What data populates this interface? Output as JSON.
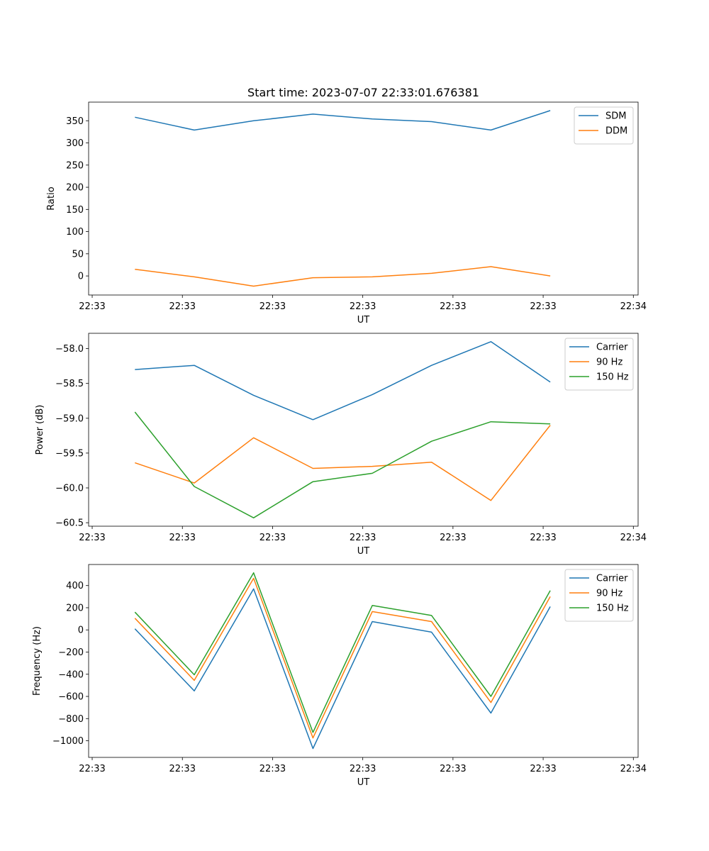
{
  "chart_data": [
    {
      "type": "line",
      "title": "Start time: 2023-07-07 22:33:01.676381",
      "xlabel": "UT",
      "ylabel": "Ratio",
      "x": [
        0,
        1,
        2,
        3,
        4,
        5,
        6,
        7
      ],
      "xlim": [
        -0.78,
        8.48
      ],
      "x_ticks": [
        -0.72,
        0.8,
        2.32,
        3.84,
        5.36,
        6.88,
        8.4
      ],
      "x_tick_labels": [
        "22:33",
        "22:33",
        "22:33",
        "22:33",
        "22:33",
        "22:33",
        "22:34"
      ],
      "ylim": [
        -43,
        392
      ],
      "y_ticks": [
        0,
        50,
        100,
        150,
        200,
        250,
        300,
        350
      ],
      "y_tick_labels": [
        "0",
        "50",
        "100",
        "150",
        "200",
        "250",
        "300",
        "350"
      ],
      "legend": "top-right",
      "series": [
        {
          "name": "SDM",
          "color": "#1f77b4",
          "values": [
            358,
            329,
            350,
            365,
            354,
            348,
            329,
            373
          ]
        },
        {
          "name": "DDM",
          "color": "#ff7f0e",
          "values": [
            15,
            -2,
            -23,
            -4,
            -2,
            6,
            21,
            0
          ]
        }
      ]
    },
    {
      "type": "line",
      "title": "",
      "xlabel": "UT",
      "ylabel": "Power (dB)",
      "x": [
        0,
        1,
        2,
        3,
        4,
        5,
        6,
        7
      ],
      "xlim": [
        -0.78,
        8.48
      ],
      "x_ticks": [
        -0.72,
        0.8,
        2.32,
        3.84,
        5.36,
        6.88,
        8.4
      ],
      "x_tick_labels": [
        "22:33",
        "22:33",
        "22:33",
        "22:33",
        "22:33",
        "22:33",
        "22:34"
      ],
      "ylim": [
        -60.55,
        -57.78
      ],
      "y_ticks": [
        -60.5,
        -60.0,
        -59.5,
        -59.0,
        -58.5,
        -58.0
      ],
      "y_tick_labels": [
        "−60.5",
        "−60.0",
        "−59.5",
        "−59.0",
        "−58.5",
        "−58.0"
      ],
      "legend": "top-right",
      "series": [
        {
          "name": "Carrier",
          "color": "#1f77b4",
          "values": [
            -58.3,
            -58.24,
            -58.67,
            -59.02,
            -58.66,
            -58.24,
            -57.9,
            -58.48
          ]
        },
        {
          "name": "90 Hz",
          "color": "#ff7f0e",
          "values": [
            -59.64,
            -59.93,
            -59.28,
            -59.72,
            -59.69,
            -59.63,
            -60.18,
            -59.1
          ]
        },
        {
          "name": "150 Hz",
          "color": "#2ca02c",
          "values": [
            -58.91,
            -59.98,
            -60.43,
            -59.91,
            -59.79,
            -59.33,
            -59.05,
            -59.08
          ]
        }
      ]
    },
    {
      "type": "line",
      "title": "",
      "xlabel": "UT",
      "ylabel": "Frequency (Hz)",
      "x": [
        0,
        1,
        2,
        3,
        4,
        5,
        6,
        7
      ],
      "xlim": [
        -0.78,
        8.48
      ],
      "x_ticks": [
        -0.72,
        0.8,
        2.32,
        3.84,
        5.36,
        6.88,
        8.4
      ],
      "x_tick_labels": [
        "22:33",
        "22:33",
        "22:33",
        "22:33",
        "22:33",
        "22:33",
        "22:34"
      ],
      "ylim": [
        -1150,
        590
      ],
      "y_ticks": [
        -1000,
        -800,
        -600,
        -400,
        -200,
        0,
        200,
        400
      ],
      "y_tick_labels": [
        "−1000",
        "−800",
        "−600",
        "−400",
        "−200",
        "0",
        "200",
        "400"
      ],
      "legend": "top-right",
      "series": [
        {
          "name": "Carrier",
          "color": "#1f77b4",
          "values": [
            10,
            -550,
            370,
            -1070,
            75,
            -20,
            -750,
            210
          ]
        },
        {
          "name": "90 Hz",
          "color": "#ff7f0e",
          "values": [
            105,
            -455,
            465,
            -975,
            165,
            75,
            -655,
            300
          ]
        },
        {
          "name": "150 Hz",
          "color": "#2ca02c",
          "values": [
            160,
            -405,
            515,
            -925,
            220,
            130,
            -600,
            355
          ]
        }
      ]
    }
  ]
}
